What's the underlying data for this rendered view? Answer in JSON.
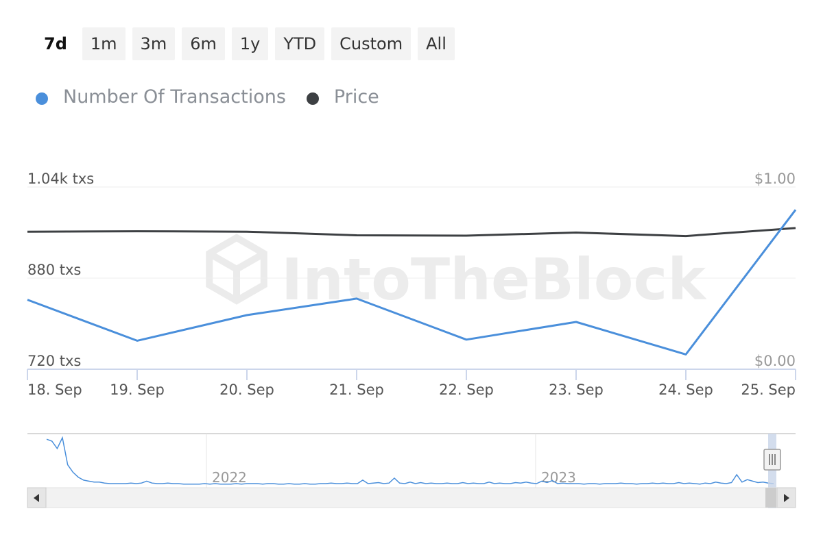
{
  "ranges": [
    {
      "label": "7d",
      "active": true
    },
    {
      "label": "1m",
      "active": false
    },
    {
      "label": "3m",
      "active": false
    },
    {
      "label": "6m",
      "active": false
    },
    {
      "label": "1y",
      "active": false
    },
    {
      "label": "YTD",
      "active": false
    },
    {
      "label": "Custom",
      "active": false
    },
    {
      "label": "All",
      "active": false
    }
  ],
  "watermark": "IntoTheBlock",
  "colors": {
    "transactions": "#4a8fdb",
    "price": "#3d4043",
    "grid": "#ececec",
    "axis": "#ccd6eb",
    "label": "#555555",
    "label_right": "#999999",
    "navigator_fill": "#f2f2f2",
    "navigator_mask": "#c8d4e8"
  },
  "chart_data": {
    "type": "line",
    "title": "",
    "x": [
      "18. Sep",
      "19. Sep",
      "20. Sep",
      "21. Sep",
      "22. Sep",
      "23. Sep",
      "24. Sep",
      "25. Sep"
    ],
    "series": [
      {
        "name": "Number Of Transactions",
        "axis": "left",
        "values": [
          842,
          770,
          815,
          844,
          772,
          803,
          746,
          1000
        ]
      },
      {
        "name": "Price",
        "axis": "right",
        "values": [
          0.755,
          0.757,
          0.755,
          0.735,
          0.733,
          0.75,
          0.731,
          0.775
        ]
      }
    ],
    "y_left": {
      "min": 720,
      "max": 1040,
      "ticks": [
        {
          "value": 720,
          "label": "720 txs"
        },
        {
          "value": 880,
          "label": "880 txs"
        },
        {
          "value": 1040,
          "label": "1.04k txs"
        }
      ]
    },
    "y_right": {
      "min": 0,
      "max": 1,
      "ticks": [
        {
          "value": 0,
          "label": "$0.00"
        },
        {
          "value": 1,
          "label": "$1.00"
        }
      ]
    },
    "grid": true,
    "legend_position": "top-left",
    "navigator": {
      "year_labels": [
        "2022",
        "2023"
      ],
      "series": [
        0.97,
        0.93,
        0.78,
        1.0,
        0.45,
        0.3,
        0.2,
        0.14,
        0.12,
        0.1,
        0.1,
        0.08,
        0.07,
        0.07,
        0.07,
        0.07,
        0.08,
        0.07,
        0.08,
        0.12,
        0.08,
        0.07,
        0.07,
        0.08,
        0.07,
        0.07,
        0.06,
        0.06,
        0.06,
        0.06,
        0.07,
        0.06,
        0.07,
        0.06,
        0.06,
        0.06,
        0.07,
        0.06,
        0.07,
        0.07,
        0.07,
        0.06,
        0.07,
        0.07,
        0.06,
        0.06,
        0.07,
        0.06,
        0.06,
        0.07,
        0.06,
        0.06,
        0.07,
        0.07,
        0.08,
        0.07,
        0.07,
        0.08,
        0.07,
        0.07,
        0.14,
        0.07,
        0.08,
        0.09,
        0.07,
        0.08,
        0.18,
        0.08,
        0.07,
        0.1,
        0.07,
        0.09,
        0.07,
        0.08,
        0.07,
        0.07,
        0.08,
        0.07,
        0.07,
        0.09,
        0.07,
        0.08,
        0.07,
        0.07,
        0.1,
        0.07,
        0.08,
        0.07,
        0.07,
        0.09,
        0.08,
        0.1,
        0.08,
        0.07,
        0.12,
        0.09,
        0.13,
        0.07,
        0.08,
        0.07,
        0.07,
        0.07,
        0.06,
        0.07,
        0.07,
        0.06,
        0.07,
        0.07,
        0.07,
        0.08,
        0.07,
        0.07,
        0.06,
        0.07,
        0.07,
        0.08,
        0.07,
        0.08,
        0.07,
        0.07,
        0.09,
        0.07,
        0.08,
        0.07,
        0.06,
        0.08,
        0.07,
        0.1,
        0.08,
        0.07,
        0.09,
        0.25,
        0.1,
        0.15,
        0.12,
        0.09,
        0.1,
        0.08,
        0.07
      ]
    }
  }
}
